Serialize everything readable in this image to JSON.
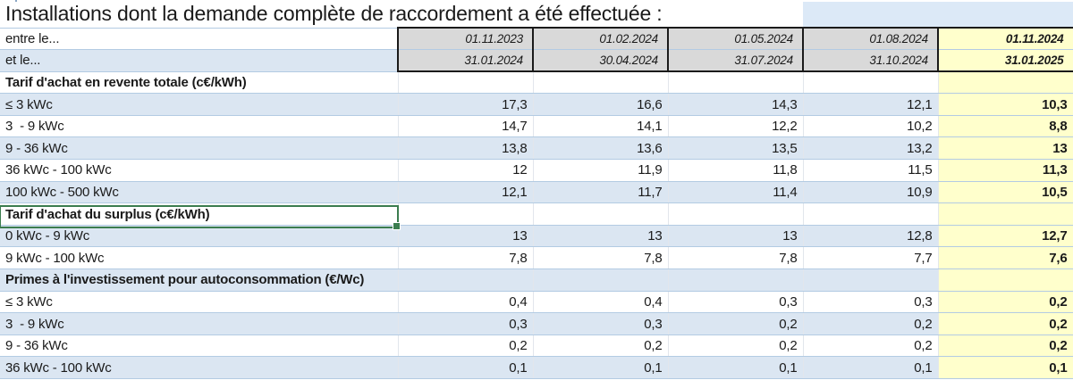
{
  "title": "Installations dont la demande complète de raccordement a été effectuée :",
  "header": {
    "start_label": "entre le...",
    "end_label": "et le...",
    "start_dates": [
      "01.11.2023",
      "01.02.2024",
      "01.05.2024",
      "01.08.2024",
      "01.11.2024"
    ],
    "end_dates": [
      "31.01.2024",
      "30.04.2024",
      "31.07.2024",
      "31.10.2024",
      "31.01.2025"
    ]
  },
  "sections": [
    {
      "header": "Tarif d'achat en revente totale (c€/kWh)",
      "rows": [
        {
          "label": "≤ 3 kWc",
          "values": [
            "17,3",
            "16,6",
            "14,3",
            "12,1",
            "10,3"
          ]
        },
        {
          "label": "3  - 9 kWc",
          "values": [
            "14,7",
            "14,1",
            "12,2",
            "10,2",
            "8,8"
          ]
        },
        {
          "label": "9 - 36 kWc",
          "values": [
            "13,8",
            "13,6",
            "13,5",
            "13,2",
            "13"
          ]
        },
        {
          "label": "36 kWc - 100 kWc",
          "values": [
            "12",
            "11,9",
            "11,8",
            "11,5",
            "11,3"
          ]
        },
        {
          "label": "100 kWc - 500 kWc",
          "values": [
            "12,1",
            "11,7",
            "11,4",
            "10,9",
            "10,5"
          ]
        }
      ]
    },
    {
      "header": "Tarif d'achat du surplus (c€/kWh)",
      "selected": true,
      "rows": [
        {
          "label": "0 kWc - 9 kWc",
          "values": [
            "13",
            "13",
            "13",
            "12,8",
            "12,7"
          ]
        },
        {
          "label": "9 kWc - 100 kWc",
          "values": [
            "7,8",
            "7,8",
            "7,8",
            "7,7",
            "7,6"
          ]
        }
      ]
    },
    {
      "header": "Primes à l'investissement pour autoconsommation (€/Wc)",
      "rows": [
        {
          "label": "≤ 3 kWc",
          "values": [
            "0,4",
            "0,4",
            "0,3",
            "0,3",
            "0,2"
          ]
        },
        {
          "label": "3  - 9 kWc",
          "values": [
            "0,3",
            "0,3",
            "0,2",
            "0,2",
            "0,2"
          ]
        },
        {
          "label": "9 - 36 kWc",
          "values": [
            "0,2",
            "0,2",
            "0,2",
            "0,2",
            "0,2"
          ]
        },
        {
          "label": "36 kWc - 100 kWc",
          "values": [
            "0,1",
            "0,1",
            "0,1",
            "0,1",
            "0,1"
          ]
        }
      ]
    }
  ],
  "colors": {
    "highlight_column": "#ffffcc",
    "header_fill": "#d9d9d9",
    "stripe_blue": "#dbe6f2",
    "gridline_blue": "#b3cbe3",
    "selection_green": "#3b7d4f",
    "title_side_fill": "#dce9f7"
  }
}
